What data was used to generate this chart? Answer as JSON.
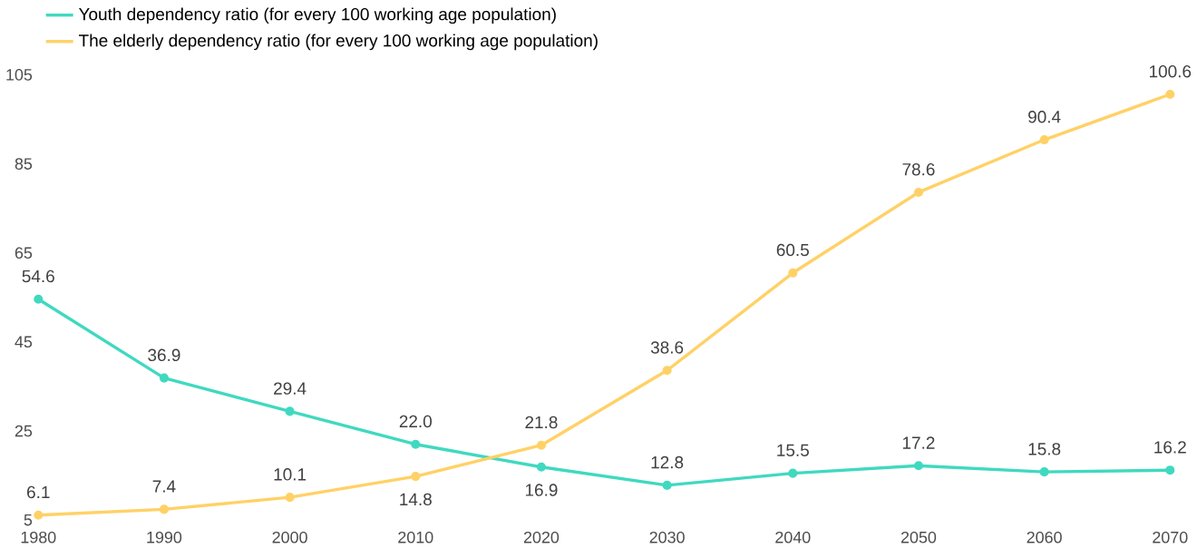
{
  "chart_data": {
    "type": "line",
    "x": [
      1980,
      1990,
      2000,
      2010,
      2020,
      2030,
      2040,
      2050,
      2060,
      2070
    ],
    "series": [
      {
        "name": "Youth dependency ratio (for every 100 working age population)",
        "color": "#40d9c0",
        "values": [
          54.6,
          36.9,
          29.4,
          22.0,
          16.9,
          12.8,
          15.5,
          17.2,
          15.8,
          16.2
        ],
        "value_labels": [
          "54.6",
          "36.9",
          "29.4",
          "22.0",
          "16.9",
          "12.8",
          "15.5",
          "17.2",
          "15.8",
          "16.2"
        ]
      },
      {
        "name": "The elderly dependency ratio (for every 100 working age population)",
        "color": "#ffd166",
        "values": [
          6.1,
          7.4,
          10.1,
          14.8,
          21.8,
          38.6,
          60.5,
          78.6,
          90.4,
          100.6
        ],
        "value_labels": [
          "6.1",
          "7.4",
          "10.1",
          "14.8",
          "21.8",
          "38.6",
          "60.5",
          "78.6",
          "90.4",
          "100.6"
        ]
      }
    ],
    "xlim": [
      1980,
      2070
    ],
    "xticks": [
      1980,
      1990,
      2000,
      2010,
      2020,
      2030,
      2040,
      2050,
      2060,
      2070
    ],
    "ylim": [
      5,
      105
    ],
    "yticks": [
      5,
      25,
      45,
      65,
      85,
      105
    ],
    "legend": "top left",
    "marker": "circle",
    "line_style": "solid",
    "grid": false
  }
}
